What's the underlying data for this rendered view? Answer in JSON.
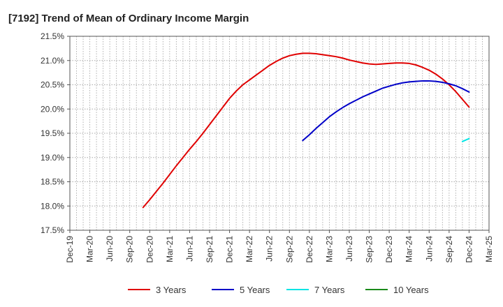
{
  "chart_data": {
    "type": "line",
    "title": "[7192]  Trend of Mean of Ordinary Income Margin",
    "xlabel": "",
    "ylabel": "",
    "x_ticks": [
      "Dec-19",
      "Mar-20",
      "Jun-20",
      "Sep-20",
      "Dec-20",
      "Mar-21",
      "Jun-21",
      "Sep-21",
      "Dec-21",
      "Mar-22",
      "Jun-22",
      "Sep-22",
      "Dec-22",
      "Mar-23",
      "Jun-23",
      "Sep-23",
      "Dec-23",
      "Mar-24",
      "Jun-24",
      "Sep-24",
      "Dec-24",
      "Mar-25"
    ],
    "y_ticks": [
      17.5,
      18.0,
      18.5,
      19.0,
      19.5,
      20.0,
      20.5,
      21.0,
      21.5
    ],
    "y_tick_format": "%",
    "ylim": [
      17.5,
      21.5
    ],
    "grid": true,
    "legend_position": "bottom",
    "series": [
      {
        "name": "3 Years",
        "color": "#e00000",
        "x": [
          "Nov-20",
          "Dec-20",
          "Jan-21",
          "Feb-21",
          "Mar-21",
          "Apr-21",
          "May-21",
          "Jun-21",
          "Jul-21",
          "Aug-21",
          "Sep-21",
          "Oct-21",
          "Nov-21",
          "Dec-21",
          "Jan-22",
          "Feb-22",
          "Mar-22",
          "Apr-22",
          "May-22",
          "Jun-22",
          "Jul-22",
          "Aug-22",
          "Sep-22",
          "Oct-22",
          "Nov-22",
          "Dec-22",
          "Jan-23",
          "Feb-23",
          "Mar-23",
          "Apr-23",
          "May-23",
          "Jun-23",
          "Jul-23",
          "Aug-23",
          "Sep-23",
          "Oct-23",
          "Nov-23",
          "Dec-23",
          "Jan-24",
          "Feb-24",
          "Mar-24",
          "Apr-24",
          "May-24",
          "Jun-24",
          "Jul-24",
          "Aug-24",
          "Sep-24",
          "Oct-24",
          "Nov-24",
          "Dec-24"
        ],
        "values": [
          17.97,
          18.13,
          18.3,
          18.47,
          18.65,
          18.83,
          19.0,
          19.17,
          19.33,
          19.5,
          19.68,
          19.86,
          20.04,
          20.22,
          20.37,
          20.5,
          20.6,
          20.7,
          20.8,
          20.9,
          20.98,
          21.05,
          21.1,
          21.13,
          21.15,
          21.15,
          21.14,
          21.12,
          21.1,
          21.08,
          21.05,
          21.01,
          20.98,
          20.95,
          20.93,
          20.92,
          20.93,
          20.94,
          20.95,
          20.95,
          20.94,
          20.91,
          20.86,
          20.8,
          20.72,
          20.62,
          20.5,
          20.36,
          20.2,
          20.04
        ]
      },
      {
        "name": "5 Years",
        "color": "#0000c8",
        "x": [
          "Nov-22",
          "Dec-22",
          "Jan-23",
          "Feb-23",
          "Mar-23",
          "Apr-23",
          "May-23",
          "Jun-23",
          "Jul-23",
          "Aug-23",
          "Sep-23",
          "Oct-23",
          "Nov-23",
          "Dec-23",
          "Jan-24",
          "Feb-24",
          "Mar-24",
          "Apr-24",
          "May-24",
          "Jun-24",
          "Jul-24",
          "Aug-24",
          "Sep-24",
          "Oct-24",
          "Nov-24",
          "Dec-24"
        ],
        "values": [
          19.35,
          19.47,
          19.6,
          19.72,
          19.84,
          19.94,
          20.03,
          20.11,
          20.18,
          20.25,
          20.31,
          20.37,
          20.43,
          20.47,
          20.51,
          20.54,
          20.56,
          20.57,
          20.58,
          20.58,
          20.57,
          20.55,
          20.52,
          20.48,
          20.42,
          20.35
        ]
      },
      {
        "name": "7 Years",
        "color": "#00e5e5",
        "x": [
          "Nov-24",
          "Dec-24"
        ],
        "values": [
          19.33,
          19.39
        ]
      },
      {
        "name": "10 Years",
        "color": "#1a8a1a",
        "x": [],
        "values": []
      }
    ]
  }
}
